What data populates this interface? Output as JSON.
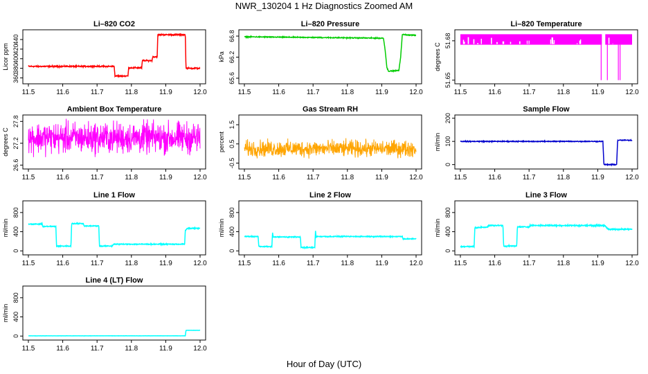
{
  "figure": {
    "title": "NWR_130204  1 Hz Diagnostics Zoomed AM",
    "xlabel": "Hour of Day (UTC)"
  },
  "chart_data": [
    {
      "type": "line",
      "title": "Li–820 CO2",
      "ylabel": "Licor ppm",
      "color": "#ff0000",
      "xlim": [
        11.5,
        12.0
      ],
      "xticks": [
        "11.5",
        "11.6",
        "11.7",
        "11.8",
        "11.9",
        "12.0"
      ],
      "ylim": [
        352,
        456
      ],
      "yticks": [
        "360",
        "380",
        "400",
        "420",
        "440"
      ],
      "x": [
        11.5,
        11.75,
        11.752,
        11.79,
        11.792,
        11.83,
        11.832,
        11.86,
        11.862,
        11.875,
        11.877,
        11.957,
        11.959,
        12.0
      ],
      "y": [
        384,
        384,
        364,
        364,
        381,
        381,
        396,
        396,
        404,
        404,
        450,
        450,
        380,
        380
      ],
      "noise": 1.0
    },
    {
      "type": "line",
      "title": "Li–820 Pressure",
      "ylabel": "kPa",
      "color": "#00cc00",
      "xlim": [
        11.5,
        12.0
      ],
      "xticks": [
        "11.5",
        "11.6",
        "11.7",
        "11.8",
        "11.9",
        "12.0"
      ],
      "ylim": [
        65.5,
        66.92
      ],
      "yticks": [
        "65.6",
        "66.2",
        "66.8"
      ],
      "x": [
        11.5,
        11.905,
        11.91,
        11.915,
        11.92,
        11.95,
        11.955,
        11.96,
        11.965,
        12.0
      ],
      "y": [
        66.78,
        66.74,
        66.4,
        65.9,
        65.8,
        65.82,
        66.2,
        66.85,
        66.84,
        66.82
      ],
      "noise": 0.01
    },
    {
      "type": "area",
      "title": "Li–820 Temperature",
      "ylabel": "degrees C",
      "color": "#ff00ff",
      "xlim": [
        11.5,
        12.0
      ],
      "xticks": [
        "11.5",
        "11.6",
        "11.7",
        "11.8",
        "11.9",
        "12.0"
      ],
      "ylim": [
        51.6488,
        51.6868
      ],
      "yticks": [
        "51.65",
        "51.68"
      ],
      "band": [
        51.677,
        51.685
      ],
      "gap": [
        11.912,
        11.922
      ],
      "spikes": [
        11.91,
        11.928,
        11.96,
        11.965
      ],
      "spike_bottom": 51.65
    },
    {
      "type": "line",
      "title": "Ambient Box Temperature",
      "ylabel": "degrees C",
      "color": "#ff00ff",
      "xlim": [
        11.5,
        12.0
      ],
      "xticks": [
        "11.5",
        "11.6",
        "11.7",
        "11.8",
        "11.9",
        "12.0"
      ],
      "ylim": [
        26.55,
        27.92
      ],
      "yticks": [
        "26.6",
        "27.2",
        "27.8"
      ],
      "x": [
        11.5,
        12.0
      ],
      "y": [
        27.35,
        27.35
      ],
      "noise": 0.35
    },
    {
      "type": "line",
      "title": "Gas Stream RH",
      "ylabel": "percent",
      "color": "#ffa500",
      "xlim": [
        11.5,
        12.0
      ],
      "xticks": [
        "11.5",
        "11.6",
        "11.7",
        "11.8",
        "11.9",
        "12.0"
      ],
      "ylim": [
        -0.7,
        1.9
      ],
      "yticks": [
        "-0.5",
        "0.5",
        "1.5"
      ],
      "x": [
        11.5,
        12.0
      ],
      "y": [
        0.25,
        0.25
      ],
      "noise": 0.35
    },
    {
      "type": "line",
      "title": "Sample Flow",
      "ylabel": "ml/min",
      "color": "#0000cd",
      "xlim": [
        11.5,
        12.0
      ],
      "xticks": [
        "11.5",
        "11.6",
        "11.7",
        "11.8",
        "11.9",
        "12.0"
      ],
      "ylim": [
        -10,
        205
      ],
      "yticks": [
        "0",
        "100",
        "200"
      ],
      "x": [
        11.5,
        11.915,
        11.918,
        11.955,
        11.958,
        12.0
      ],
      "y": [
        100,
        100,
        0,
        0,
        105,
        105
      ],
      "noise": 1.5
    },
    {
      "type": "line",
      "title": "Line 1 Flow",
      "ylabel": "ml/min",
      "color": "#00ffff",
      "xlim": [
        11.5,
        12.0
      ],
      "xticks": [
        "11.5",
        "11.6",
        "11.7",
        "11.8",
        "11.9",
        "12.0"
      ],
      "ylim": [
        -40,
        1000
      ],
      "yticks": [
        "0",
        "400",
        "800"
      ],
      "x": [
        11.5,
        11.54,
        11.542,
        11.58,
        11.582,
        11.624,
        11.626,
        11.66,
        11.662,
        11.705,
        11.707,
        11.745,
        11.747,
        11.955,
        11.957,
        11.963,
        12.0
      ],
      "y": [
        560,
        560,
        510,
        510,
        100,
        100,
        570,
        570,
        520,
        520,
        100,
        100,
        140,
        140,
        420,
        470,
        470
      ],
      "noise": 8
    },
    {
      "type": "line",
      "title": "Line 2 Flow",
      "ylabel": "ml/min",
      "color": "#00ffff",
      "xlim": [
        11.5,
        12.0
      ],
      "xticks": [
        "11.5",
        "11.6",
        "11.7",
        "11.8",
        "11.9",
        "12.0"
      ],
      "ylim": [
        -40,
        1000
      ],
      "yticks": [
        "0",
        "400",
        "800"
      ],
      "x": [
        11.5,
        11.54,
        11.542,
        11.58,
        11.582,
        11.584,
        11.586,
        11.663,
        11.665,
        11.705,
        11.707,
        11.709,
        11.711,
        11.96,
        11.962,
        12.0
      ],
      "y": [
        300,
        300,
        90,
        90,
        380,
        290,
        290,
        290,
        70,
        70,
        420,
        290,
        300,
        300,
        250,
        250
      ],
      "noise": 8
    },
    {
      "type": "line",
      "title": "Line 3 Flow",
      "ylabel": "ml/min",
      "color": "#00ffff",
      "xlim": [
        11.5,
        12.0
      ],
      "xticks": [
        "11.5",
        "11.6",
        "11.7",
        "11.8",
        "11.9",
        "12.0"
      ],
      "ylim": [
        -40,
        1000
      ],
      "yticks": [
        "0",
        "400",
        "800"
      ],
      "x": [
        11.5,
        11.54,
        11.542,
        11.58,
        11.582,
        11.624,
        11.626,
        11.664,
        11.666,
        11.7,
        11.702,
        11.92,
        11.93,
        12.0
      ],
      "y": [
        90,
        90,
        480,
        500,
        530,
        530,
        100,
        100,
        500,
        500,
        530,
        530,
        450,
        450
      ],
      "noise": 10
    },
    {
      "type": "line",
      "title": "Line 4 (LT) Flow",
      "ylabel": "ml/min",
      "color": "#00ffff",
      "xlim": [
        11.5,
        12.0
      ],
      "xticks": [
        "11.5",
        "11.6",
        "11.7",
        "11.8",
        "11.9",
        "12.0"
      ],
      "ylim": [
        -40,
        1000
      ],
      "yticks": [
        "0",
        "400",
        "800"
      ],
      "x": [
        11.5,
        11.957,
        11.959,
        12.0
      ],
      "y": [
        5,
        5,
        120,
        120
      ],
      "noise": 1.5
    }
  ]
}
